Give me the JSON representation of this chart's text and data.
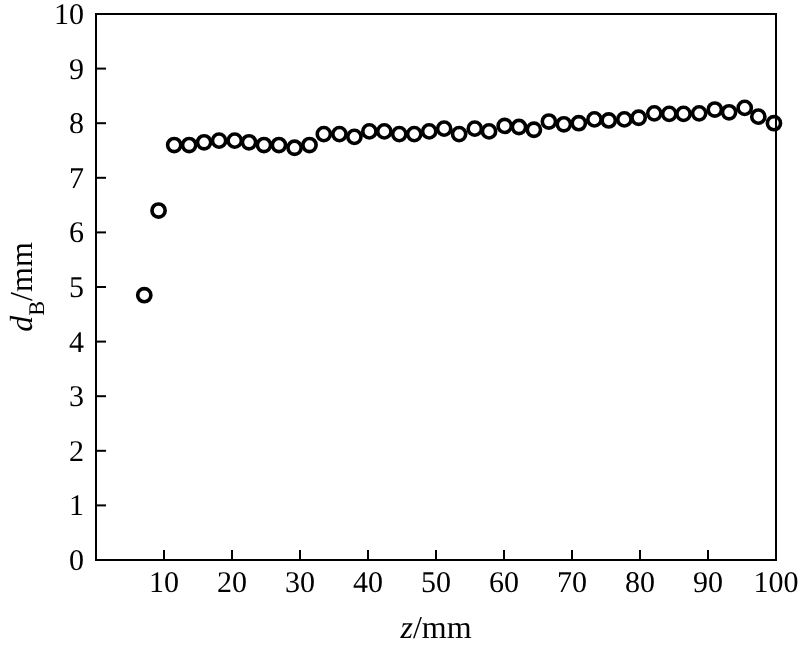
{
  "chart_data": {
    "type": "scatter",
    "xlabel": "z/mm",
    "ylabel": "d$_{B}$/mm",
    "x": [
      7.1,
      9.2,
      11.5,
      13.7,
      15.9,
      18.1,
      20.4,
      22.5,
      24.7,
      26.9,
      29.2,
      31.4,
      33.5,
      35.8,
      38,
      40.2,
      42.4,
      44.6,
      46.8,
      49,
      51.2,
      53.4,
      55.7,
      57.8,
      60.1,
      62.2,
      64.4,
      66.6,
      68.8,
      71,
      73.3,
      75.4,
      77.7,
      79.8,
      82.1,
      84.3,
      86.4,
      88.7,
      91,
      93.1,
      95.4,
      97.4,
      99.7
    ],
    "series": [
      {
        "color": "#000000",
        "values": [
          4.85,
          6.4,
          7.6,
          7.6,
          7.65,
          7.68,
          7.68,
          7.65,
          7.6,
          7.6,
          7.55,
          7.6,
          7.8,
          7.8,
          7.75,
          7.85,
          7.85,
          7.8,
          7.8,
          7.85,
          7.9,
          7.8,
          7.9,
          7.85,
          7.95,
          7.93,
          7.88,
          8.03,
          7.98,
          8.0,
          8.07,
          8.05,
          8.07,
          8.1,
          8.18,
          8.17,
          8.17,
          8.18,
          8.25,
          8.2,
          8.28,
          8.12,
          8.0
        ]
      }
    ],
    "xlim": [
      0,
      100
    ],
    "ylim": [
      0,
      10
    ],
    "xticks": [
      10,
      20,
      30,
      40,
      50,
      60,
      70,
      80,
      90,
      100
    ],
    "yticks": [
      0,
      1,
      2,
      3,
      4,
      5,
      6,
      7,
      8,
      9,
      10
    ],
    "marker": "circle"
  }
}
